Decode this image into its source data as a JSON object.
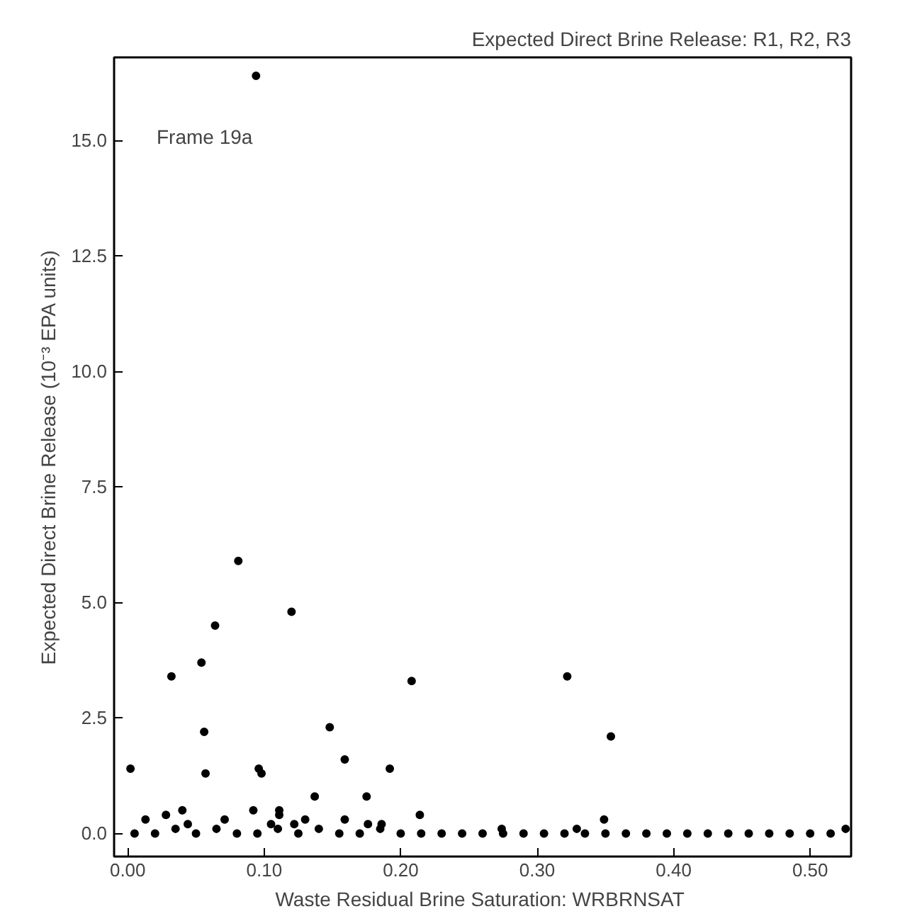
{
  "chart_data": {
    "type": "scatter",
    "title": "Expected Direct Brine Release: R1, R2, R3",
    "xlabel": "Waste Residual Brine Saturation:  WRBRNSAT",
    "ylabel": "Expected Direct Brine Release (10⁻³ EPA units)",
    "annotations": [
      "Frame 19a"
    ],
    "series": [
      {
        "color": "#000000",
        "x": [
          0.094,
          0.081,
          0.12,
          0.064,
          0.054,
          0.032,
          0.056,
          0.148,
          0.159,
          0.002,
          0.057,
          0.096,
          0.098,
          0.192,
          0.137,
          0.175,
          0.028,
          0.04,
          0.092,
          0.111,
          0.111,
          0.071,
          0.13,
          0.013,
          0.159,
          0.186,
          0.176,
          0.044,
          0.105,
          0.122,
          0.208,
          0.322,
          0.354,
          0.214,
          0.349,
          0.274,
          0.329,
          0.526
        ],
        "values": [
          16.4,
          5.9,
          4.8,
          4.5,
          3.7,
          3.4,
          2.2,
          2.3,
          1.6,
          1.4,
          1.3,
          1.4,
          1.3,
          1.4,
          0.8,
          0.8,
          0.4,
          0.5,
          0.5,
          0.5,
          0.4,
          0.3,
          0.3,
          0.3,
          0.3,
          0.2,
          0.2,
          0.2,
          0.2,
          0.2,
          3.3,
          3.4,
          2.1,
          0.4,
          0.3,
          0.1,
          0.1,
          0.1
        ]
      },
      {
        "color": "#000000",
        "x": [
          0.005,
          0.02,
          0.035,
          0.05,
          0.065,
          0.08,
          0.095,
          0.11,
          0.125,
          0.14,
          0.155,
          0.17,
          0.185,
          0.2,
          0.215,
          0.23,
          0.245,
          0.26,
          0.275,
          0.29,
          0.305,
          0.32,
          0.335,
          0.35,
          0.365,
          0.38,
          0.395,
          0.41,
          0.425,
          0.44,
          0.455,
          0.47,
          0.485,
          0.5,
          0.515
        ],
        "values": [
          0,
          0,
          0.1,
          0,
          0.1,
          0,
          0,
          0.1,
          0,
          0.1,
          0,
          0,
          0.1,
          0,
          0,
          0,
          0,
          0,
          0,
          0,
          0,
          0,
          0,
          0,
          0,
          0,
          0,
          0,
          0,
          0,
          0,
          0,
          0,
          0,
          0
        ]
      }
    ],
    "marker": "circle",
    "grid": false,
    "xlim": [
      -0.01,
      0.53
    ],
    "ylim": [
      -0.5,
      16.8
    ],
    "xticks": [
      {
        "value": 0,
        "label": "0.00"
      },
      {
        "value": 0.1,
        "label": "0.10"
      },
      {
        "value": 0.2,
        "label": "0.20"
      },
      {
        "value": 0.3,
        "label": "0.30"
      },
      {
        "value": 0.4,
        "label": "0.40"
      },
      {
        "value": 0.5,
        "label": "0.50"
      }
    ],
    "yticks": [
      {
        "value": 0,
        "label": "0.0"
      },
      {
        "value": 2.5,
        "label": "2.5"
      },
      {
        "value": 5,
        "label": "5.0"
      },
      {
        "value": 7.5,
        "label": "7.5"
      },
      {
        "value": 10,
        "label": "10.0"
      },
      {
        "value": 12.5,
        "label": "12.5"
      },
      {
        "value": 15,
        "label": "15.0"
      }
    ]
  }
}
